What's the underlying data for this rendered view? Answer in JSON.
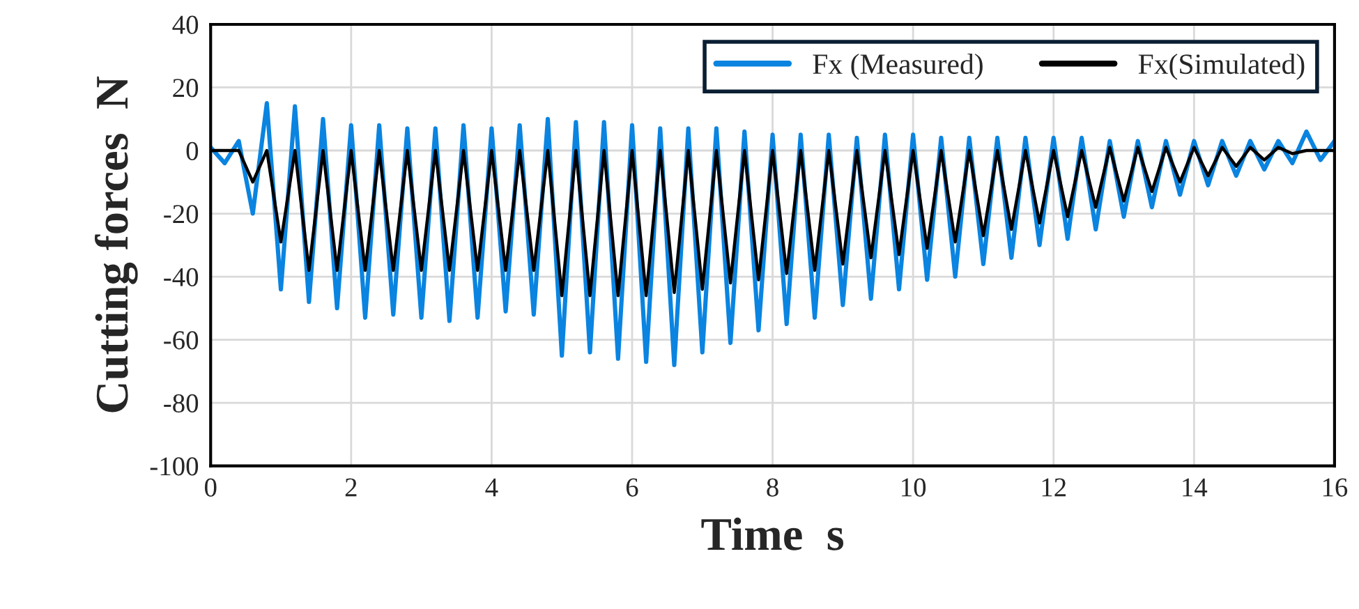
{
  "chart_data": {
    "type": "line",
    "xlabel": "Time  s",
    "ylabel": "Cutting forces  N",
    "x": [
      0,
      0.2,
      0.4,
      0.6,
      0.8,
      1.0,
      1.2,
      1.4,
      1.6,
      1.8,
      2.0,
      2.2,
      2.4,
      2.6,
      2.8,
      3.0,
      3.2,
      3.4,
      3.6,
      3.8,
      4.0,
      4.2,
      4.4,
      4.6,
      4.8,
      5.0,
      5.2,
      5.4,
      5.6,
      5.8,
      6.0,
      6.2,
      6.4,
      6.6,
      6.8,
      7.0,
      7.2,
      7.4,
      7.6,
      7.8,
      8.0,
      8.2,
      8.4,
      8.6,
      8.8,
      9.0,
      9.2,
      9.4,
      9.6,
      9.8,
      10.0,
      10.2,
      10.4,
      10.6,
      10.8,
      11.0,
      11.2,
      11.4,
      11.6,
      11.8,
      12.0,
      12.2,
      12.4,
      12.6,
      12.8,
      13.0,
      13.2,
      13.4,
      13.6,
      13.8,
      14.0,
      14.2,
      14.4,
      14.6,
      14.8,
      15.0,
      15.2,
      15.4,
      15.6,
      15.8,
      16.0
    ],
    "series": [
      {
        "name": "Fx (Measured)",
        "color": "#0a84e0",
        "values": [
          1,
          -4,
          3,
          -20,
          15,
          -44,
          14,
          -48,
          10,
          -50,
          8,
          -53,
          8,
          -52,
          7,
          -53,
          7,
          -54,
          8,
          -53,
          7,
          -51,
          8,
          -52,
          10,
          -65,
          9,
          -64,
          9,
          -66,
          8,
          -67,
          7,
          -68,
          7,
          -64,
          7,
          -61,
          6,
          -57,
          5,
          -55,
          5,
          -53,
          5,
          -49,
          4,
          -47,
          5,
          -44,
          5,
          -41,
          4,
          -40,
          4,
          -36,
          4,
          -34,
          4,
          -30,
          4,
          -28,
          4,
          -25,
          3,
          -21,
          3,
          -18,
          3,
          -14,
          3,
          -11,
          3,
          -8,
          3,
          -6,
          3,
          -4,
          6,
          -3,
          3
        ]
      },
      {
        "name": "Fx(Simulated)",
        "color": "#000000",
        "values": [
          0,
          0,
          0,
          -10,
          0,
          -29,
          0,
          -38,
          0,
          -38,
          0,
          -38,
          0,
          -38,
          0,
          -38,
          0,
          -38,
          0,
          -38,
          0,
          -38,
          0,
          -38,
          0,
          -46,
          0,
          -46,
          0,
          -46,
          0,
          -46,
          0,
          -45,
          0,
          -44,
          0,
          -42,
          0,
          -41,
          0,
          -39,
          0,
          -38,
          0,
          -36,
          0,
          -34,
          0,
          -33,
          0,
          -31,
          0,
          -29,
          0,
          -27,
          0,
          -25,
          0,
          -23,
          0,
          -21,
          0,
          -18,
          1,
          -16,
          1,
          -13,
          1,
          -10,
          1,
          -8,
          1,
          -5,
          1,
          -3,
          1,
          -1,
          0,
          0,
          0
        ]
      }
    ],
    "xlim": [
      0,
      16
    ],
    "xticks": [
      0,
      2,
      4,
      6,
      8,
      10,
      12,
      14,
      16
    ],
    "ylim": [
      -100,
      40
    ],
    "yticks": [
      -100,
      -80,
      -60,
      -40,
      -20,
      0,
      20,
      40
    ],
    "grid": true,
    "legend": "top right",
    "marker": "none",
    "line_style": "solid"
  }
}
